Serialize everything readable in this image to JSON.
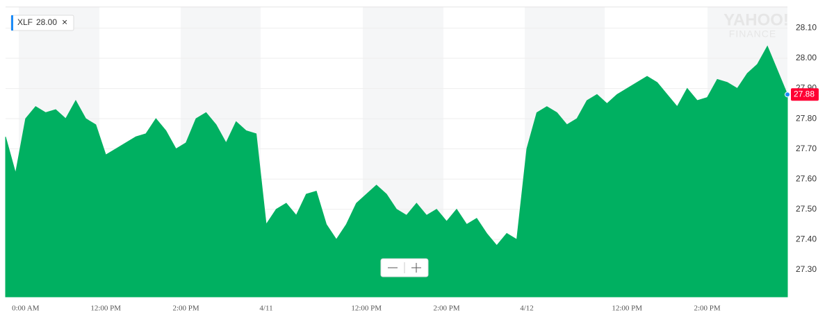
{
  "chart_data": {
    "type": "area",
    "legend": {
      "symbol": "XLF",
      "value": "28.00"
    },
    "watermark": [
      "YAHOO!",
      "FINANCE"
    ],
    "categories": [
      null,
      null,
      "0:00 AM",
      null,
      null,
      null,
      null,
      null,
      null,
      null,
      "12:00 PM",
      null,
      null,
      null,
      null,
      null,
      null,
      null,
      "2:00 PM",
      null,
      null,
      null,
      null,
      null,
      null,
      null,
      "4/11",
      null,
      null,
      null,
      null,
      null,
      null,
      null,
      null,
      null,
      "12:00 PM",
      null,
      null,
      null,
      null,
      null,
      null,
      null,
      "2:00 PM",
      null,
      null,
      null,
      null,
      null,
      null,
      null,
      "4/12",
      null,
      null,
      null,
      null,
      null,
      null,
      null,
      null,
      null,
      "12:00 PM",
      null,
      null,
      null,
      null,
      null,
      null,
      null,
      "2:00 PM",
      null,
      null,
      null,
      null,
      null,
      null,
      null,
      null
    ],
    "series": [
      {
        "name": "XLF",
        "color": "#00b061",
        "values": [
          27.74,
          27.62,
          27.8,
          27.84,
          27.82,
          27.83,
          27.8,
          27.86,
          27.8,
          27.78,
          27.68,
          27.7,
          27.72,
          27.74,
          27.75,
          27.8,
          27.76,
          27.7,
          27.72,
          27.8,
          27.82,
          27.78,
          27.72,
          27.79,
          27.76,
          27.75,
          27.45,
          27.5,
          27.52,
          27.48,
          27.55,
          27.56,
          27.45,
          27.4,
          27.45,
          27.52,
          27.55,
          27.58,
          27.55,
          27.5,
          27.48,
          27.52,
          27.48,
          27.5,
          27.46,
          27.5,
          27.45,
          27.47,
          27.42,
          27.38,
          27.42,
          27.4,
          27.7,
          27.82,
          27.84,
          27.82,
          27.78,
          27.8,
          27.86,
          27.88,
          27.85,
          27.88,
          27.9,
          27.92,
          27.94,
          27.92,
          27.88,
          27.84,
          27.9,
          27.86,
          27.87,
          27.93,
          27.92,
          27.9,
          27.95,
          27.98,
          28.04,
          27.96,
          27.88
        ]
      }
    ],
    "ylim": [
      27.21,
      28.17
    ],
    "yticks": [
      {
        "value": 27.3,
        "label": "27.30"
      },
      {
        "value": 27.4,
        "label": "27.40"
      },
      {
        "value": 27.5,
        "label": "27.50"
      },
      {
        "value": 27.6,
        "label": "27.60"
      },
      {
        "value": 27.7,
        "label": "27.70"
      },
      {
        "value": 27.8,
        "label": "27.80"
      },
      {
        "value": 27.9,
        "label": "27.90"
      },
      {
        "value": 28.0,
        "label": "28.00"
      },
      {
        "value": 28.1,
        "label": "28.10"
      }
    ],
    "grid": true
  }
}
